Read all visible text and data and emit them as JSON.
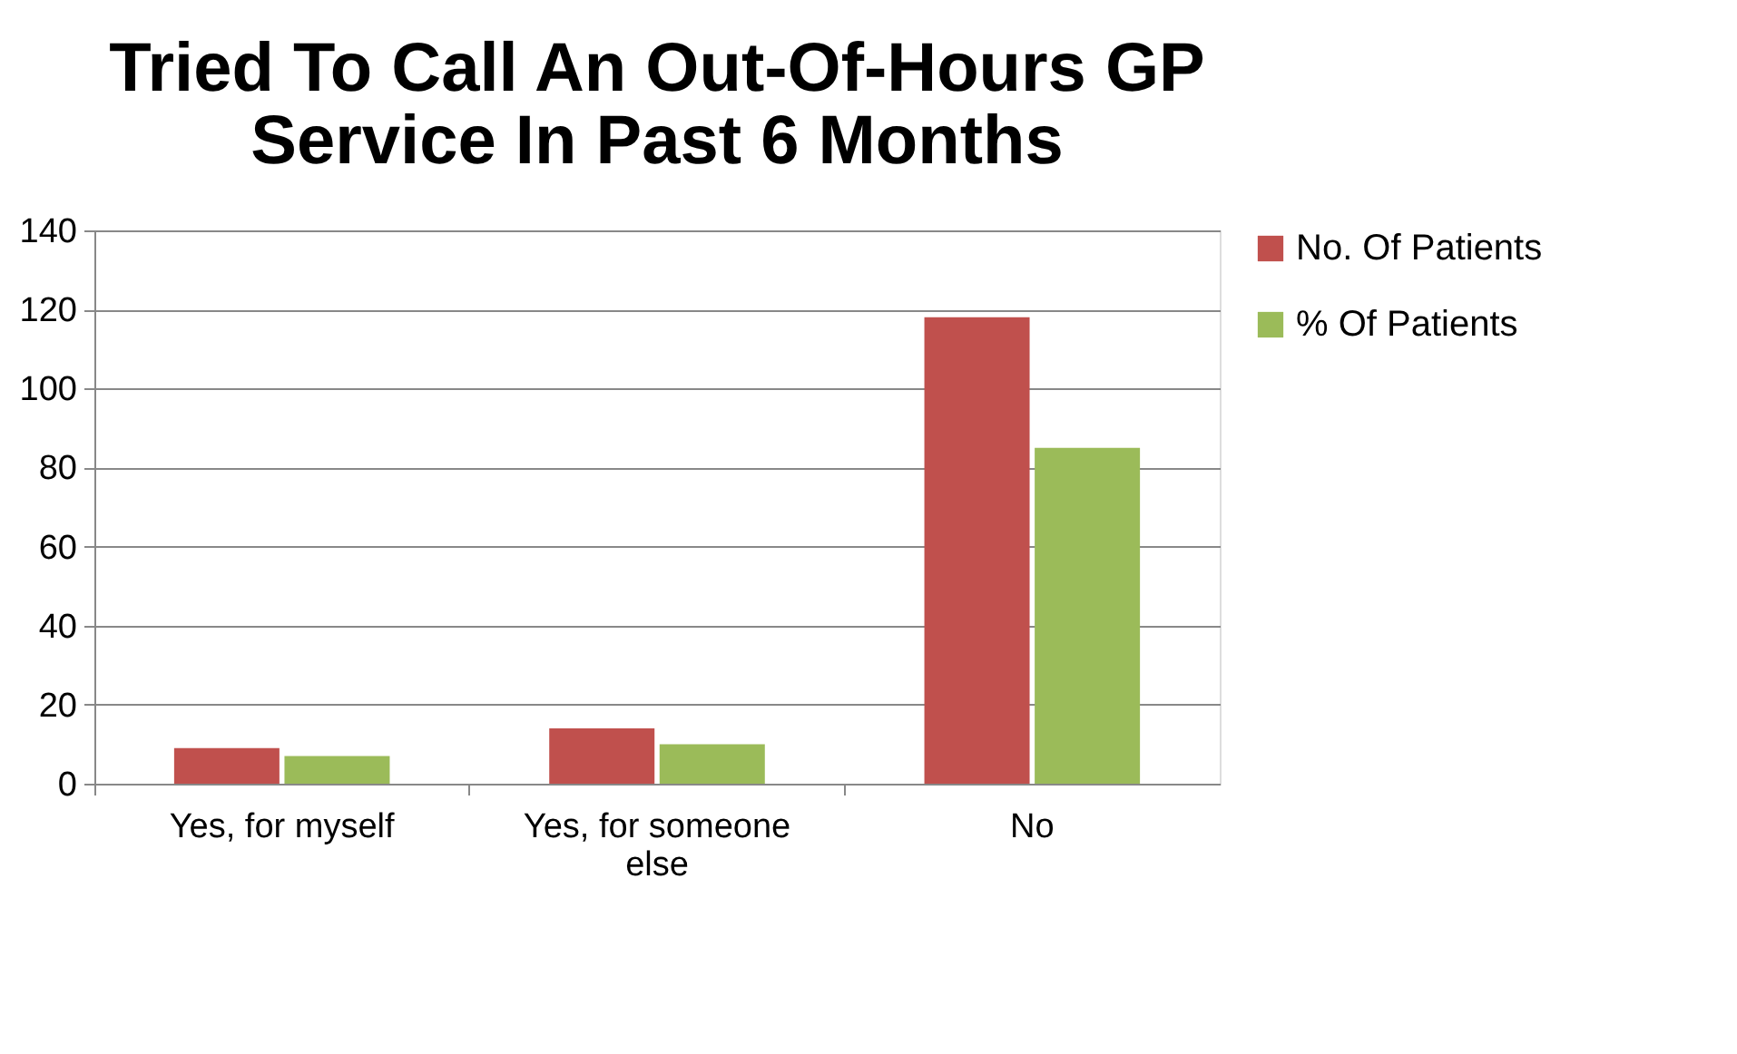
{
  "chart_data": {
    "type": "bar",
    "title": "Tried To Call An Out-Of-Hours GP Service In Past 6 Months",
    "categories": [
      "Yes, for myself",
      "Yes, for someone else",
      "No"
    ],
    "series": [
      {
        "name": "No. Of Patients",
        "color": "#c0504d",
        "values": [
          9,
          14,
          118
        ]
      },
      {
        "name": "% Of Patients",
        "color": "#9bbb59",
        "values": [
          7,
          10,
          85
        ]
      }
    ],
    "ylim": [
      0,
      140
    ],
    "yticks": [
      0,
      20,
      40,
      60,
      80,
      100,
      120,
      140
    ],
    "grid": "y",
    "legend": "right"
  }
}
